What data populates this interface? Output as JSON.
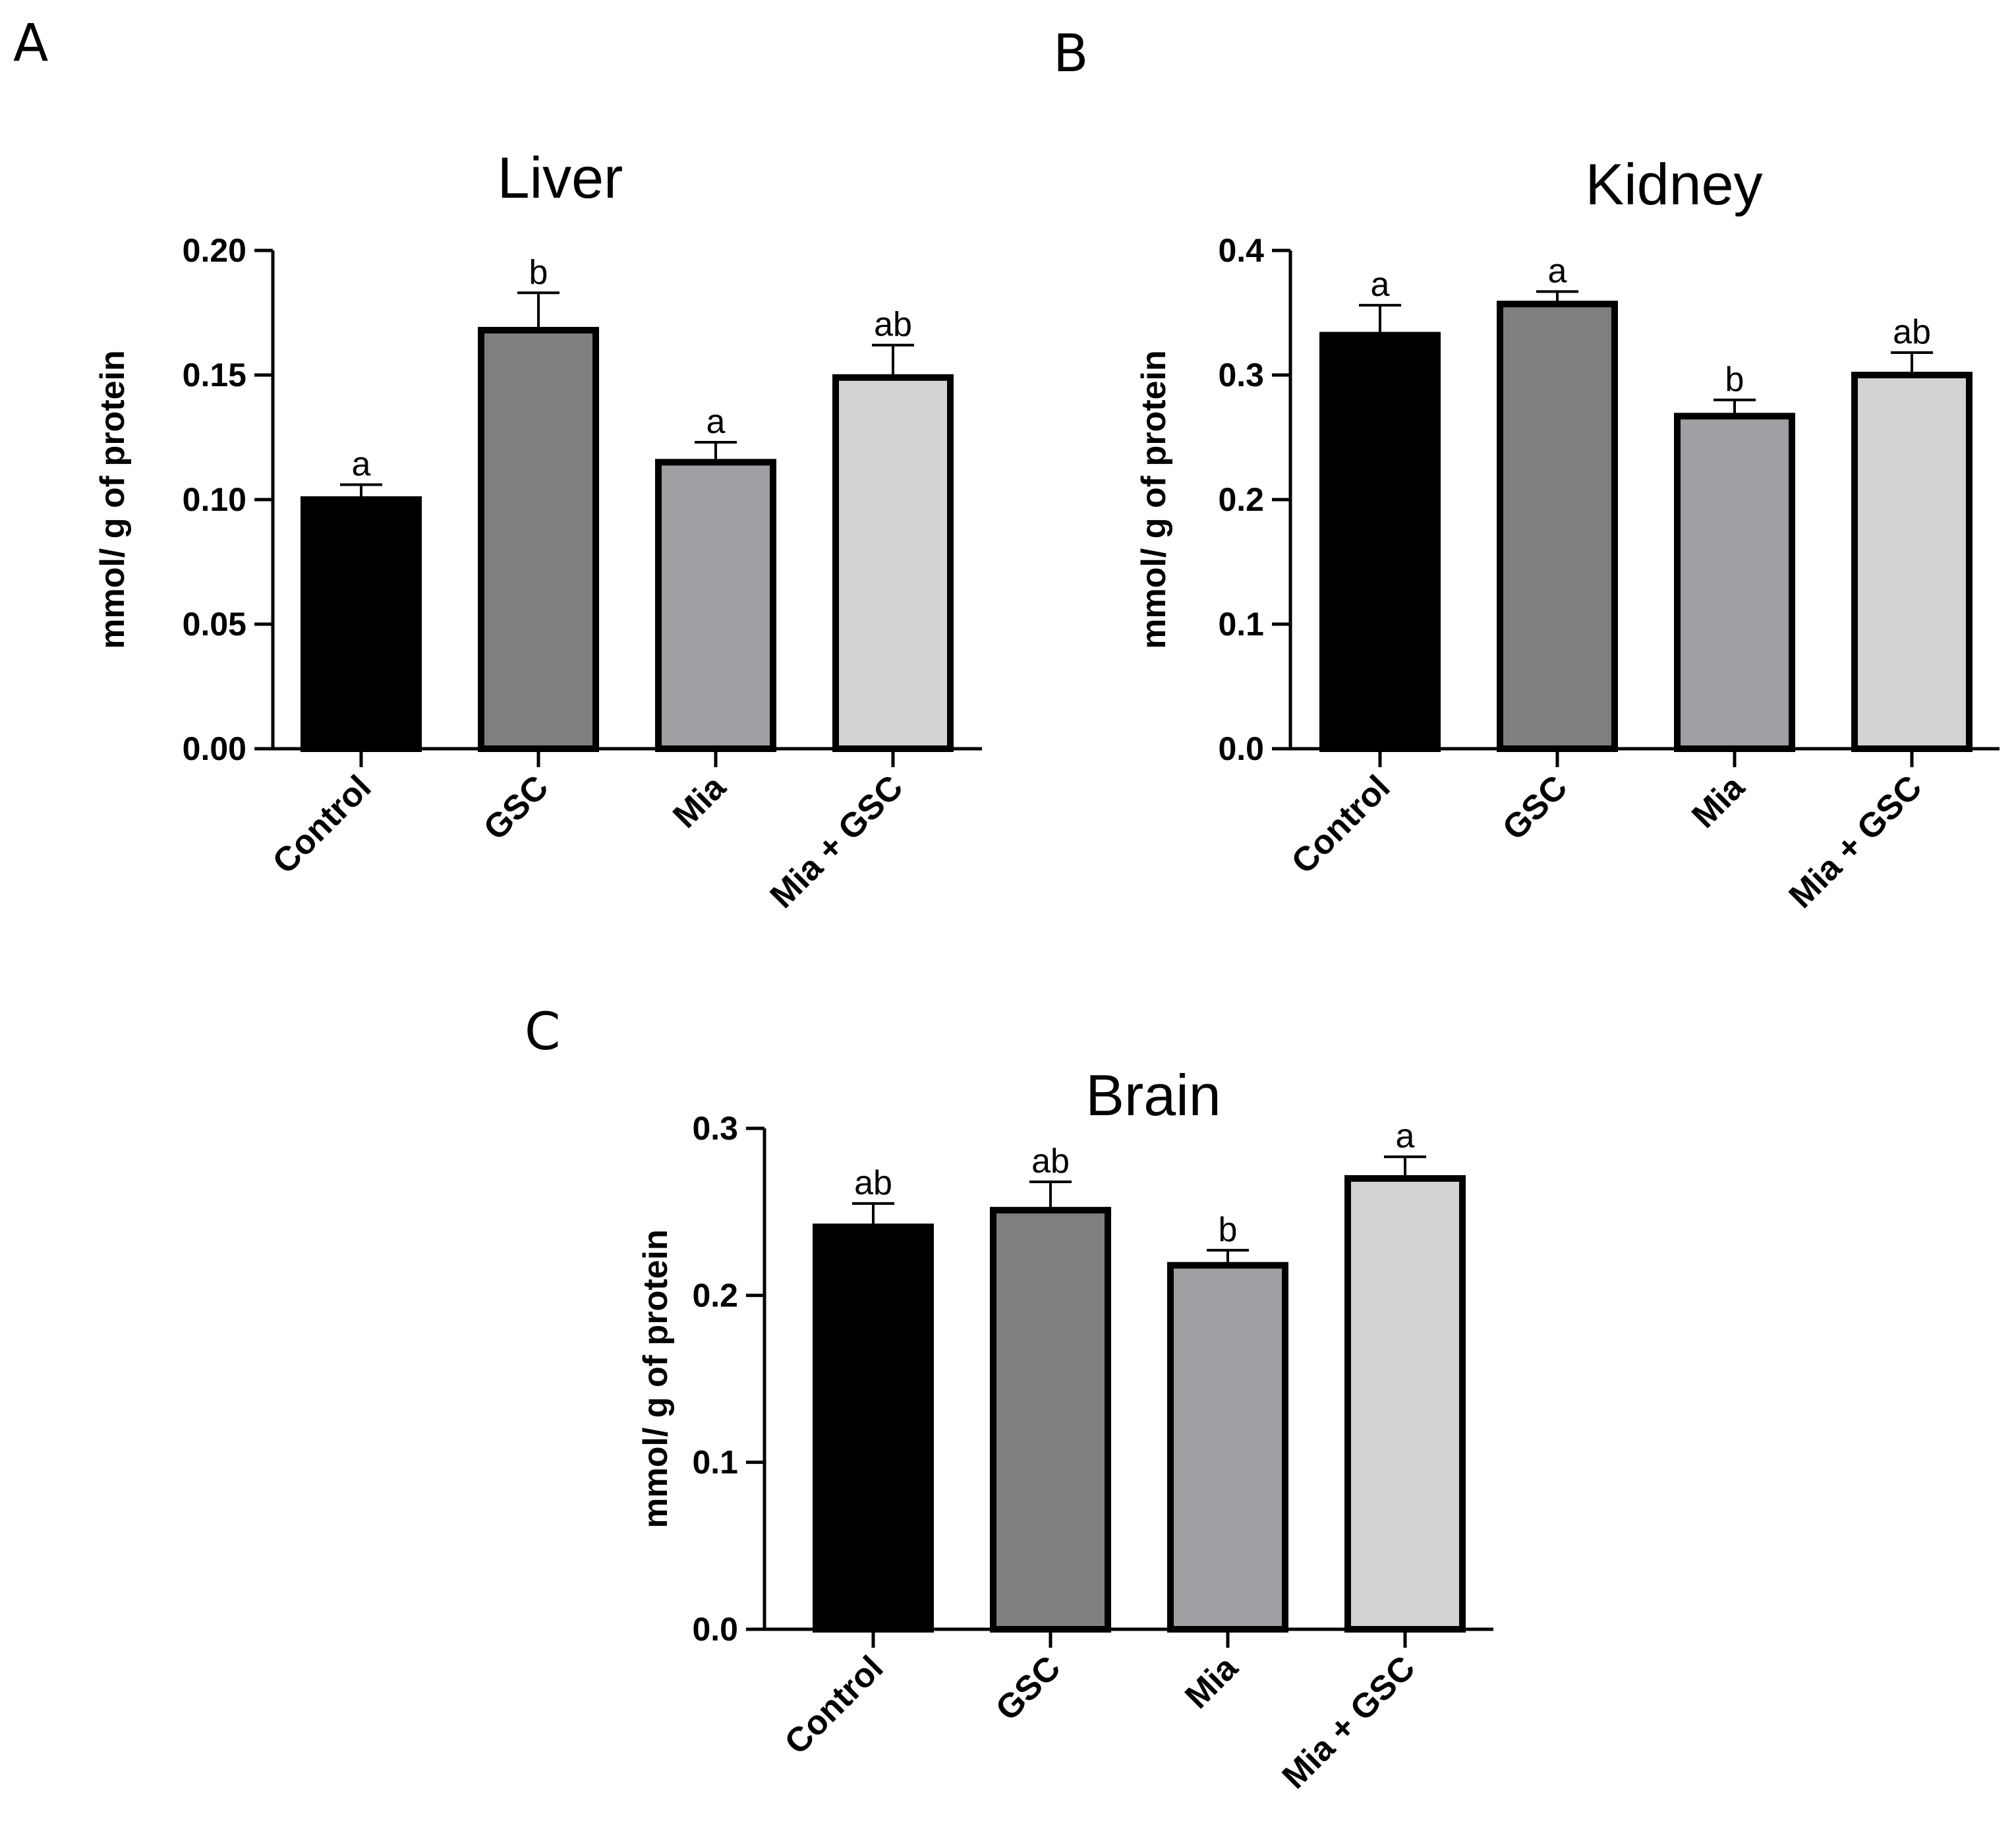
{
  "chart_data": [
    {
      "panel": "A",
      "type": "bar",
      "title": "Liver",
      "xlabel": "",
      "ylabel": "mmol/ g of protein",
      "ylim": [
        0,
        0.2
      ],
      "yticks": [
        "0.00",
        "0.05",
        "0.10",
        "0.15",
        "0.20"
      ],
      "ytick_values": [
        0,
        0.05,
        0.1,
        0.15,
        0.2
      ],
      "categories": [
        "Control",
        "GSC",
        "Mia",
        "Mia + GSC"
      ],
      "values": [
        0.1,
        0.168,
        0.115,
        0.149
      ],
      "errors": [
        0.006,
        0.015,
        0.008,
        0.013
      ],
      "significance": [
        "a",
        "b",
        "a",
        "ab"
      ],
      "colors": [
        "#000000",
        "#7f7f7f",
        "#a0a0a4",
        "#d3d3d3"
      ]
    },
    {
      "panel": "B",
      "type": "bar",
      "title": "Kidney",
      "xlabel": "",
      "ylabel": "mmol/ g of protein",
      "ylim": [
        0,
        0.4
      ],
      "yticks": [
        "0.0",
        "0.1",
        "0.2",
        "0.3",
        "0.4"
      ],
      "ytick_values": [
        0,
        0.1,
        0.2,
        0.3,
        0.4
      ],
      "categories": [
        "Control",
        "GSC",
        "Mia",
        "Mia + GSC"
      ],
      "values": [
        0.332,
        0.357,
        0.267,
        0.3
      ],
      "errors": [
        0.024,
        0.01,
        0.013,
        0.018
      ],
      "significance": [
        "a",
        "a",
        "b",
        "ab"
      ],
      "colors": [
        "#000000",
        "#7f7f7f",
        "#a0a0a4",
        "#d3d3d3"
      ]
    },
    {
      "panel": "C",
      "type": "bar",
      "title": "Brain",
      "xlabel": "",
      "ylabel": "mmol/ g of protein",
      "ylim": [
        0,
        0.3
      ],
      "yticks": [
        "0.0",
        "0.1",
        "0.2",
        "0.3"
      ],
      "ytick_values": [
        0,
        0.1,
        0.2,
        0.3
      ],
      "categories": [
        "Control",
        "GSC",
        "Mia",
        "Mia + GSC"
      ],
      "values": [
        0.241,
        0.251,
        0.218,
        0.27
      ],
      "errors": [
        0.014,
        0.017,
        0.009,
        0.013
      ],
      "significance": [
        "ab",
        "ab",
        "b",
        "a"
      ],
      "colors": [
        "#000000",
        "#7f7f7f",
        "#a0a0a4",
        "#d3d3d3"
      ]
    }
  ]
}
